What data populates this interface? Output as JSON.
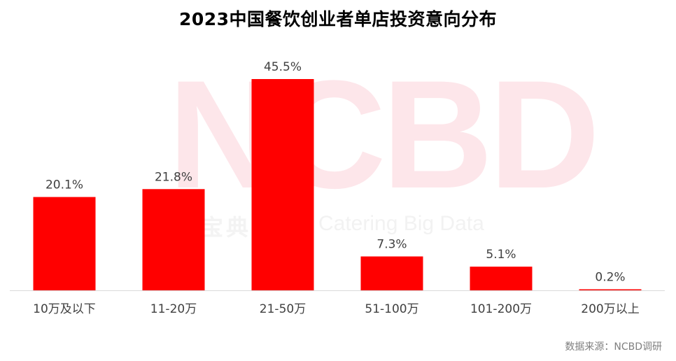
{
  "title": "2023中国餐饮创业者单店投资意向分布",
  "watermark": {
    "brand": "NCBD",
    "cn": "宝典",
    "en": "Catering Big Data"
  },
  "source": "数据来源：NCBD调研",
  "colors": {
    "bar": "#ff0000",
    "axis": "#d9d9d9",
    "label": "#404040"
  },
  "chart_data": {
    "type": "bar",
    "title": "2023中国餐饮创业者单店投资意向分布",
    "categories": [
      "10万及以下",
      "11-20万",
      "21-50万",
      "51-100万",
      "101-200万",
      "200万以上"
    ],
    "values": [
      20.1,
      21.8,
      45.5,
      7.3,
      5.1,
      0.2
    ],
    "value_labels": [
      "20.1%",
      "21.8%",
      "45.5%",
      "7.3%",
      "5.1%",
      "0.2%"
    ],
    "unit": "%",
    "ylim": [
      0,
      50
    ],
    "grid": false,
    "legend": "none"
  }
}
